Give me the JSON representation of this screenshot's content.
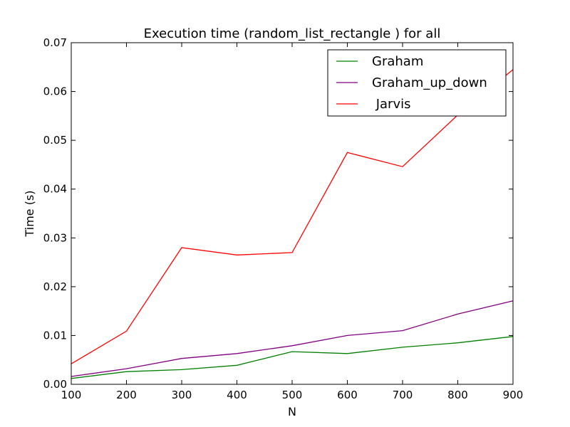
{
  "chart_data": {
    "type": "line",
    "title": "Execution time (random_list_rectangle ) for all",
    "xlabel": "N",
    "ylabel": "Time (s)",
    "xlim": [
      100,
      900
    ],
    "ylim": [
      0,
      0.07
    ],
    "x": [
      100,
      200,
      300,
      400,
      500,
      600,
      700,
      800,
      900
    ],
    "x_tick_labels": [
      "100",
      "200",
      "300",
      "400",
      "500",
      "600",
      "700",
      "800",
      "900"
    ],
    "y_ticks": [
      0,
      0.01,
      0.02,
      0.03,
      0.04,
      0.05,
      0.06,
      0.07
    ],
    "y_tick_labels": [
      "0.00",
      "0.01",
      "0.02",
      "0.03",
      "0.04",
      "0.05",
      "0.06",
      "0.07"
    ],
    "grid": false,
    "legend_position": "top-right",
    "series": [
      {
        "name": "Graham",
        "color": "#008000",
        "values": [
          0.0012,
          0.0026,
          0.003,
          0.0039,
          0.0067,
          0.0063,
          0.0076,
          0.0085,
          0.0098
        ]
      },
      {
        "name": "Graham_up_down",
        "color": "#800080",
        "values": [
          0.0016,
          0.0032,
          0.0053,
          0.0063,
          0.0079,
          0.01,
          0.011,
          0.0144,
          0.0171
        ]
      },
      {
        "name": " Jarvis",
        "color": "#ff0000",
        "values": [
          0.0042,
          0.0109,
          0.028,
          0.0265,
          0.027,
          0.0475,
          0.0446,
          0.0552,
          0.0645
        ]
      }
    ]
  }
}
